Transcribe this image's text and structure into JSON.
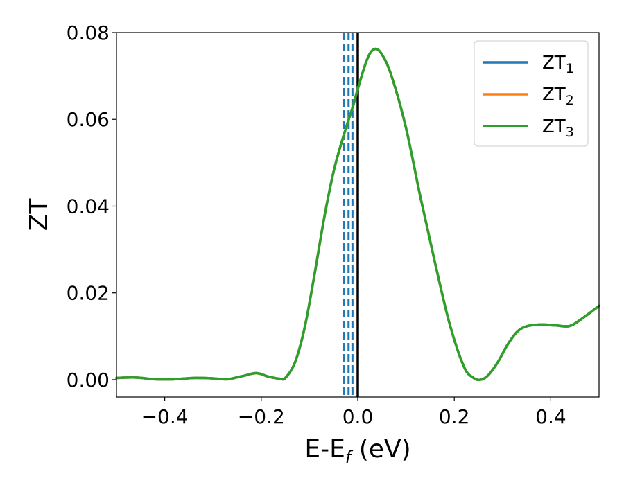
{
  "chart_data": {
    "type": "line",
    "xlabel": {
      "main": "E-E",
      "sub": "f",
      "unit": " (eV)"
    },
    "ylabel": "ZT",
    "xlim": [
      -0.5,
      0.5
    ],
    "ylim": [
      -0.004,
      0.08
    ],
    "xticks": [
      -0.4,
      -0.2,
      0.0,
      0.2,
      0.4
    ],
    "xtick_labels": [
      "−0.4",
      "−0.2",
      "0.0",
      "0.2",
      "0.4"
    ],
    "yticks": [
      0.0,
      0.02,
      0.04,
      0.06,
      0.08
    ],
    "ytick_labels": [
      "0.00",
      "0.02",
      "0.04",
      "0.06",
      "0.08"
    ],
    "grid": false,
    "legend_position": "top-right",
    "x": [
      -0.5,
      -0.46,
      -0.42,
      -0.38,
      -0.34,
      -0.3,
      -0.27,
      -0.24,
      -0.21,
      -0.185,
      -0.16,
      -0.15,
      -0.13,
      -0.11,
      -0.09,
      -0.07,
      -0.05,
      -0.03,
      -0.01,
      0.0,
      0.02,
      0.035,
      0.05,
      0.07,
      0.1,
      0.13,
      0.16,
      0.19,
      0.22,
      0.24,
      0.255,
      0.27,
      0.29,
      0.31,
      0.33,
      0.35,
      0.38,
      0.41,
      0.44,
      0.47,
      0.5
    ],
    "series": [
      {
        "name": "ZT",
        "sub": "1",
        "color": "#1f77b4",
        "values": [
          0.0004,
          0.0005,
          0.0001,
          0.0001,
          0.0004,
          0.0003,
          0.0001,
          0.0008,
          0.0015,
          0.0007,
          0.0002,
          0.0004,
          0.004,
          0.012,
          0.024,
          0.037,
          0.048,
          0.056,
          0.063,
          0.067,
          0.074,
          0.0762,
          0.075,
          0.07,
          0.058,
          0.042,
          0.027,
          0.013,
          0.003,
          0.0004,
          0.0,
          0.001,
          0.004,
          0.008,
          0.011,
          0.0123,
          0.0127,
          0.0125,
          0.0124,
          0.0145,
          0.017
        ]
      },
      {
        "name": "ZT",
        "sub": "2",
        "color": "#ff7f0e",
        "values": [
          0.0004,
          0.0005,
          0.0001,
          0.0001,
          0.0004,
          0.0003,
          0.0001,
          0.0008,
          0.0015,
          0.0007,
          0.0002,
          0.0004,
          0.004,
          0.012,
          0.024,
          0.037,
          0.048,
          0.056,
          0.063,
          0.067,
          0.074,
          0.0762,
          0.075,
          0.07,
          0.058,
          0.042,
          0.027,
          0.013,
          0.003,
          0.0004,
          0.0,
          0.001,
          0.004,
          0.008,
          0.011,
          0.0123,
          0.0127,
          0.0125,
          0.0124,
          0.0145,
          0.017
        ]
      },
      {
        "name": "ZT",
        "sub": "3",
        "color": "#2ca02c",
        "values": [
          0.0004,
          0.0005,
          0.0001,
          0.0001,
          0.0004,
          0.0003,
          0.0001,
          0.0008,
          0.0015,
          0.0007,
          0.0002,
          0.0004,
          0.004,
          0.012,
          0.024,
          0.037,
          0.048,
          0.056,
          0.063,
          0.067,
          0.074,
          0.0762,
          0.075,
          0.07,
          0.058,
          0.042,
          0.027,
          0.013,
          0.003,
          0.0004,
          0.0,
          0.001,
          0.004,
          0.008,
          0.011,
          0.0123,
          0.0127,
          0.0125,
          0.0124,
          0.0145,
          0.017
        ]
      }
    ],
    "vlines": [
      {
        "x": -0.028,
        "style": "dashed",
        "color": "#1f77b4"
      },
      {
        "x": -0.019,
        "style": "dashed",
        "color": "#1f77b4"
      },
      {
        "x": -0.011,
        "style": "dashed",
        "color": "#1f77b4"
      },
      {
        "x": 0.0,
        "style": "solid",
        "color": "#000000"
      }
    ]
  }
}
